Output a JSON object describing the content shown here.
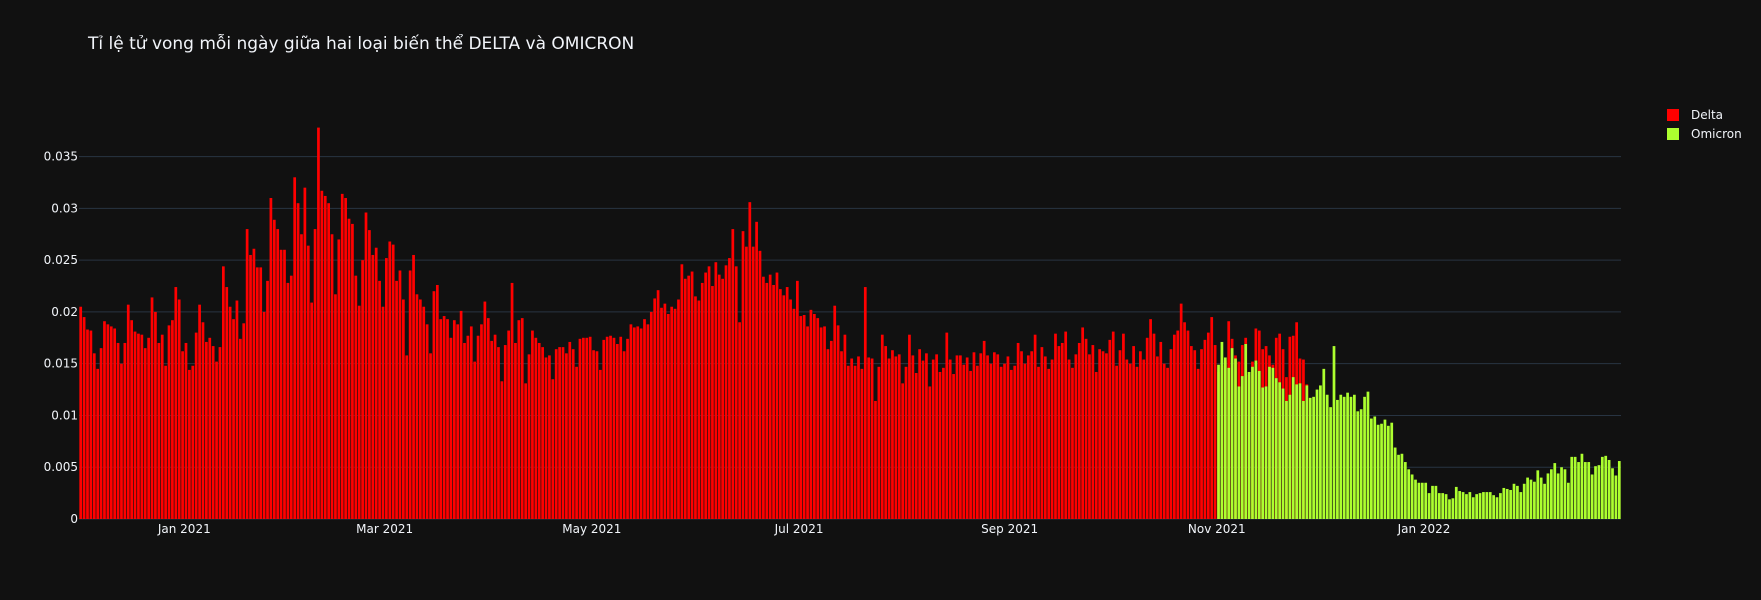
{
  "chart_data": {
    "type": "bar",
    "title": "Tỉ lệ tử vong mỗi ngày giữa hai loại biến thể DELTA và OMICRON",
    "xlabel": "",
    "ylabel": "",
    "x_range": [
      "2020-12-01",
      "2022-02-28"
    ],
    "ylim": [
      0,
      0.0395
    ],
    "yticks": [
      0,
      0.005,
      0.01,
      0.015,
      0.02,
      0.025,
      0.03,
      0.035
    ],
    "ytick_labels": [
      "0",
      "0.005",
      "0.01",
      "0.015",
      "0.02",
      "0.025",
      "0.03",
      "0.035"
    ],
    "xticks": [
      "2021-01-01",
      "2021-03-01",
      "2021-05-01",
      "2021-07-01",
      "2021-09-01",
      "2021-11-01",
      "2022-01-01"
    ],
    "xtick_labels": [
      "Jan 2021",
      "Mar 2021",
      "May 2021",
      "Jul 2021",
      "Sep 2021",
      "Nov 2021",
      "Jan 2022"
    ],
    "grid": true,
    "legend_position": "top-right",
    "series": [
      {
        "name": "Delta",
        "color": "#ff0000",
        "start_date": "2020-12-01",
        "values": [
          0.0205,
          0.0195,
          0.0183,
          0.0182,
          0.016,
          0.0145,
          0.0165,
          0.0191,
          0.0188,
          0.0186,
          0.0184,
          0.017,
          0.015,
          0.017,
          0.0207,
          0.0192,
          0.0181,
          0.0179,
          0.0178,
          0.0165,
          0.0175,
          0.0214,
          0.02,
          0.017,
          0.0178,
          0.0148,
          0.0187,
          0.0192,
          0.0224,
          0.0212,
          0.0162,
          0.017,
          0.0144,
          0.0148,
          0.018,
          0.0207,
          0.019,
          0.0171,
          0.0175,
          0.0167,
          0.0152,
          0.0166,
          0.0244,
          0.0224,
          0.0205,
          0.0193,
          0.0211,
          0.0174,
          0.0189,
          0.028,
          0.0255,
          0.0261,
          0.0243,
          0.0243,
          0.02,
          0.023,
          0.031,
          0.0289,
          0.028,
          0.026,
          0.026,
          0.0228,
          0.0235,
          0.033,
          0.0305,
          0.0275,
          0.032,
          0.0264,
          0.0209,
          0.028,
          0.0378,
          0.0317,
          0.0312,
          0.0305,
          0.0275,
          0.0217,
          0.027,
          0.0314,
          0.031,
          0.029,
          0.0285,
          0.0235,
          0.0206,
          0.025,
          0.0296,
          0.0279,
          0.0255,
          0.0262,
          0.023,
          0.0205,
          0.0252,
          0.0268,
          0.0265,
          0.023,
          0.024,
          0.0212,
          0.0158,
          0.024,
          0.0255,
          0.0217,
          0.0212,
          0.0205,
          0.0188,
          0.016,
          0.022,
          0.0226,
          0.0193,
          0.0196,
          0.0193,
          0.0175,
          0.0192,
          0.0188,
          0.0201,
          0.017,
          0.0177,
          0.0186,
          0.0152,
          0.0177,
          0.0188,
          0.021,
          0.0194,
          0.0172,
          0.0178,
          0.0166,
          0.0133,
          0.0168,
          0.0182,
          0.0228,
          0.017,
          0.0192,
          0.0194,
          0.0131,
          0.0159,
          0.0182,
          0.0175,
          0.017,
          0.0166,
          0.0156,
          0.0158,
          0.0135,
          0.0164,
          0.0166,
          0.0166,
          0.016,
          0.0171,
          0.0164,
          0.0147,
          0.0174,
          0.0175,
          0.0175,
          0.0176,
          0.0163,
          0.0162,
          0.0144,
          0.0173,
          0.0176,
          0.0177,
          0.0175,
          0.0169,
          0.0176,
          0.0162,
          0.0174,
          0.0188,
          0.0185,
          0.0186,
          0.0184,
          0.0193,
          0.0188,
          0.02,
          0.0213,
          0.0221,
          0.0204,
          0.0208,
          0.0198,
          0.0205,
          0.0203,
          0.0212,
          0.0246,
          0.0232,
          0.0235,
          0.0239,
          0.0215,
          0.0211,
          0.0228,
          0.0238,
          0.0244,
          0.0225,
          0.0248,
          0.0236,
          0.0232,
          0.0245,
          0.0252,
          0.028,
          0.0244,
          0.019,
          0.0278,
          0.0263,
          0.0306,
          0.0263,
          0.0287,
          0.0259,
          0.0234,
          0.0228,
          0.0236,
          0.0226,
          0.0238,
          0.0222,
          0.0216,
          0.0224,
          0.0212,
          0.0203,
          0.023,
          0.0196,
          0.0197,
          0.0186,
          0.0202,
          0.0198,
          0.0194,
          0.0185,
          0.0186,
          0.0164,
          0.0172,
          0.0206,
          0.0187,
          0.0162,
          0.0178,
          0.0148,
          0.0155,
          0.0148,
          0.0157,
          0.0145,
          0.0224,
          0.0156,
          0.0155,
          0.0114,
          0.0147,
          0.0178,
          0.0167,
          0.0155,
          0.0163,
          0.0157,
          0.0159,
          0.0131,
          0.0147,
          0.0178,
          0.0158,
          0.0141,
          0.0164,
          0.0153,
          0.016,
          0.0128,
          0.0154,
          0.0159,
          0.0142,
          0.0146,
          0.018,
          0.0154,
          0.014,
          0.0158,
          0.0158,
          0.0149,
          0.0156,
          0.0143,
          0.0161,
          0.0148,
          0.016,
          0.0172,
          0.0158,
          0.015,
          0.0161,
          0.0159,
          0.0147,
          0.015,
          0.0157,
          0.0144,
          0.0148,
          0.017,
          0.0162,
          0.015,
          0.0158,
          0.0162,
          0.0178,
          0.0147,
          0.0166,
          0.0157,
          0.0145,
          0.0154,
          0.0179,
          0.0167,
          0.017,
          0.0181,
          0.0154,
          0.0146,
          0.0159,
          0.017,
          0.0185,
          0.0174,
          0.0159,
          0.0168,
          0.0142,
          0.0164,
          0.0162,
          0.016,
          0.0173,
          0.0181,
          0.0148,
          0.0163,
          0.0179,
          0.0154,
          0.015,
          0.0167,
          0.0147,
          0.0162,
          0.0154,
          0.0175,
          0.0193,
          0.0179,
          0.0157,
          0.0171,
          0.015,
          0.0146,
          0.0164,
          0.0178,
          0.0182,
          0.0208,
          0.019,
          0.0182,
          0.0167,
          0.0163,
          0.0145,
          0.0164,
          0.0173,
          0.018,
          0.0195,
          0.0168,
          0.0142,
          0.0148,
          0.0153,
          0.0191,
          0.0174,
          0.0158,
          0.0152,
          0.0168,
          0.0175,
          0.0139,
          0.0152,
          0.0184,
          0.0182,
          0.0164,
          0.0167,
          0.0158,
          0.0149,
          0.0175,
          0.0179,
          0.0164,
          0.0137,
          0.0176,
          0.0177,
          0.019,
          0.0155,
          0.0154,
          0.013
        ]
      },
      {
        "name": "Omicron",
        "color": "#adff2f",
        "start_date": "2021-11-01",
        "values": [
          0.0149,
          0.0171,
          0.0156,
          0.0146,
          0.0165,
          0.0155,
          0.0128,
          0.0138,
          0.0169,
          0.0142,
          0.0147,
          0.0153,
          0.0143,
          0.0127,
          0.0128,
          0.0147,
          0.0146,
          0.0136,
          0.0132,
          0.0126,
          0.0114,
          0.012,
          0.0137,
          0.013,
          0.0131,
          0.0114,
          0.0129,
          0.0117,
          0.0118,
          0.0125,
          0.0129,
          0.0145,
          0.012,
          0.0108,
          0.0167,
          0.0115,
          0.012,
          0.0118,
          0.0122,
          0.0118,
          0.012,
          0.0104,
          0.0106,
          0.0118,
          0.0123,
          0.0097,
          0.0099,
          0.0091,
          0.0092,
          0.0096,
          0.009,
          0.0093,
          0.0069,
          0.0062,
          0.0063,
          0.0055,
          0.0048,
          0.0043,
          0.0038,
          0.0035,
          0.0035,
          0.0035,
          0.0025,
          0.0032,
          0.0032,
          0.0025,
          0.0025,
          0.0024,
          0.0019,
          0.002,
          0.0031,
          0.0027,
          0.0026,
          0.0024,
          0.0026,
          0.0021,
          0.0024,
          0.0025,
          0.0026,
          0.0026,
          0.0026,
          0.0023,
          0.0021,
          0.0025,
          0.003,
          0.0029,
          0.0028,
          0.0034,
          0.0032,
          0.0026,
          0.0034,
          0.004,
          0.0038,
          0.0036,
          0.0047,
          0.004,
          0.0034,
          0.0044,
          0.0048,
          0.0054,
          0.0044,
          0.005,
          0.0048,
          0.0035,
          0.006,
          0.006,
          0.0055,
          0.0063,
          0.0055,
          0.0055,
          0.0043,
          0.0051,
          0.0052,
          0.006,
          0.0061,
          0.0057,
          0.0049,
          0.0042,
          0.0056
        ]
      }
    ]
  }
}
